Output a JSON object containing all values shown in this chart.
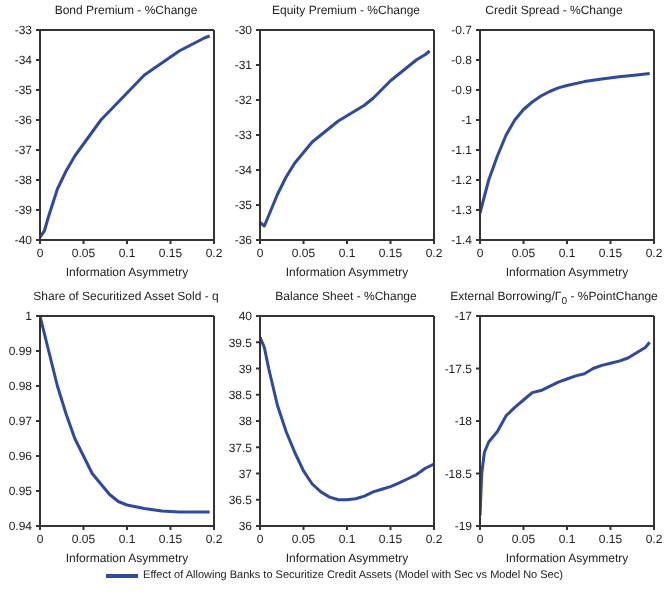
{
  "chart_data": [
    {
      "type": "line",
      "title": "Bond Premium - %Change",
      "xlabel": "Information Asymmetry",
      "xlim": [
        0,
        0.2
      ],
      "xticks": [
        0,
        0.05,
        0.1,
        0.15,
        0.2
      ],
      "ylim": [
        -40,
        -33
      ],
      "yticks": [
        -40,
        -39,
        -38,
        -37,
        -36,
        -35,
        -34,
        -33
      ],
      "series": [
        {
          "color": "#2e4a9e",
          "x": [
            0,
            0.005,
            0.01,
            0.02,
            0.03,
            0.04,
            0.05,
            0.06,
            0.07,
            0.08,
            0.09,
            0.1,
            0.11,
            0.12,
            0.13,
            0.14,
            0.15,
            0.16,
            0.17,
            0.18,
            0.19,
            0.195
          ],
          "values": [
            -39.9,
            -39.7,
            -39.2,
            -38.3,
            -37.7,
            -37.2,
            -36.8,
            -36.4,
            -36.0,
            -35.7,
            -35.4,
            -35.1,
            -34.8,
            -34.5,
            -34.3,
            -34.1,
            -33.9,
            -33.7,
            -33.55,
            -33.4,
            -33.25,
            -33.2
          ]
        }
      ]
    },
    {
      "type": "line",
      "title": "Equity Premium - %Change",
      "xlabel": "Information Asymmetry",
      "xlim": [
        0,
        0.2
      ],
      "xticks": [
        0,
        0.05,
        0.1,
        0.15,
        0.2
      ],
      "ylim": [
        -36,
        -30
      ],
      "yticks": [
        -36,
        -35,
        -34,
        -33,
        -32,
        -31,
        -30
      ],
      "series": [
        {
          "color": "#2e4a9e",
          "x": [
            0,
            0.005,
            0.01,
            0.02,
            0.03,
            0.04,
            0.05,
            0.06,
            0.07,
            0.08,
            0.09,
            0.1,
            0.11,
            0.12,
            0.13,
            0.14,
            0.15,
            0.16,
            0.17,
            0.18,
            0.19,
            0.195
          ],
          "values": [
            -35.5,
            -35.6,
            -35.3,
            -34.7,
            -34.2,
            -33.8,
            -33.5,
            -33.2,
            -33.0,
            -32.8,
            -32.6,
            -32.45,
            -32.3,
            -32.15,
            -31.95,
            -31.7,
            -31.45,
            -31.25,
            -31.05,
            -30.85,
            -30.7,
            -30.6
          ]
        }
      ]
    },
    {
      "type": "line",
      "title": "Credit Spread - %Change",
      "xlabel": "Information Asymmetry",
      "xlim": [
        0,
        0.2
      ],
      "xticks": [
        0,
        0.05,
        0.1,
        0.15,
        0.2
      ],
      "ylim": [
        -1.4,
        -0.7
      ],
      "yticks": [
        -1.4,
        -1.3,
        -1.2,
        -1.1,
        -1,
        -0.9,
        -0.8,
        -0.7
      ],
      "series": [
        {
          "color": "#2e4a9e",
          "x": [
            0,
            0.01,
            0.02,
            0.03,
            0.04,
            0.05,
            0.06,
            0.07,
            0.08,
            0.09,
            0.1,
            0.12,
            0.14,
            0.16,
            0.18,
            0.195
          ],
          "values": [
            -1.31,
            -1.2,
            -1.12,
            -1.05,
            -1.0,
            -0.965,
            -0.94,
            -0.92,
            -0.905,
            -0.893,
            -0.885,
            -0.872,
            -0.863,
            -0.856,
            -0.85,
            -0.845
          ]
        }
      ]
    },
    {
      "type": "line",
      "title": "Share of Securitized Asset Sold - q",
      "xlabel": "Information Asymmetry",
      "xlim": [
        0,
        0.2
      ],
      "xticks": [
        0,
        0.05,
        0.1,
        0.15,
        0.2
      ],
      "ylim": [
        0.94,
        1
      ],
      "yticks": [
        0.94,
        0.95,
        0.96,
        0.97,
        0.98,
        0.99,
        1
      ],
      "series": [
        {
          "color": "#2e4a9e",
          "x": [
            0,
            0.01,
            0.02,
            0.03,
            0.04,
            0.05,
            0.06,
            0.07,
            0.08,
            0.09,
            0.1,
            0.12,
            0.14,
            0.16,
            0.18,
            0.195
          ],
          "values": [
            1.0,
            0.99,
            0.98,
            0.972,
            0.965,
            0.96,
            0.955,
            0.952,
            0.949,
            0.947,
            0.946,
            0.945,
            0.9443,
            0.944,
            0.944,
            0.944
          ]
        }
      ]
    },
    {
      "type": "line",
      "title": "Balance Sheet - %Change",
      "xlabel": "Information Asymmetry",
      "xlim": [
        0,
        0.2
      ],
      "xticks": [
        0,
        0.05,
        0.1,
        0.15,
        0.2
      ],
      "ylim": [
        36,
        40
      ],
      "yticks": [
        36,
        36.5,
        37,
        37.5,
        38,
        38.5,
        39,
        39.5,
        40
      ],
      "legend": "bottom",
      "series": [
        {
          "name": "Effect of Allowing Banks to Securitize Credit Assets (Model with Sec vs Model No Sec)",
          "color": "#2e4a9e",
          "x": [
            0,
            0.005,
            0.01,
            0.02,
            0.03,
            0.04,
            0.05,
            0.06,
            0.07,
            0.08,
            0.09,
            0.1,
            0.11,
            0.12,
            0.13,
            0.14,
            0.15,
            0.16,
            0.17,
            0.18,
            0.19,
            0.2
          ],
          "values": [
            39.6,
            39.4,
            39.0,
            38.3,
            37.8,
            37.4,
            37.05,
            36.8,
            36.65,
            36.55,
            36.5,
            36.5,
            36.52,
            36.57,
            36.65,
            36.7,
            36.75,
            36.82,
            36.9,
            36.98,
            37.1,
            37.18
          ]
        }
      ]
    },
    {
      "type": "line",
      "title": "External Borrowing/Γ$_{0}$ - %PointChange",
      "xlabel": "Information Asymmetry",
      "xlim": [
        0,
        0.2
      ],
      "xticks": [
        0,
        0.05,
        0.1,
        0.15,
        0.2
      ],
      "ylim": [
        -19,
        -17
      ],
      "yticks": [
        -19,
        -18.5,
        -18,
        -17.5,
        -17
      ],
      "series": [
        {
          "color": "#2e4a9e",
          "x": [
            0,
            0.002,
            0.005,
            0.01,
            0.02,
            0.03,
            0.04,
            0.05,
            0.06,
            0.07,
            0.08,
            0.09,
            0.1,
            0.11,
            0.12,
            0.13,
            0.14,
            0.15,
            0.16,
            0.17,
            0.18,
            0.19,
            0.195
          ],
          "values": [
            -18.9,
            -18.5,
            -18.3,
            -18.2,
            -18.1,
            -17.95,
            -17.87,
            -17.8,
            -17.73,
            -17.71,
            -17.67,
            -17.63,
            -17.6,
            -17.57,
            -17.55,
            -17.5,
            -17.47,
            -17.45,
            -17.43,
            -17.4,
            -17.35,
            -17.3,
            -17.25
          ]
        }
      ]
    }
  ]
}
